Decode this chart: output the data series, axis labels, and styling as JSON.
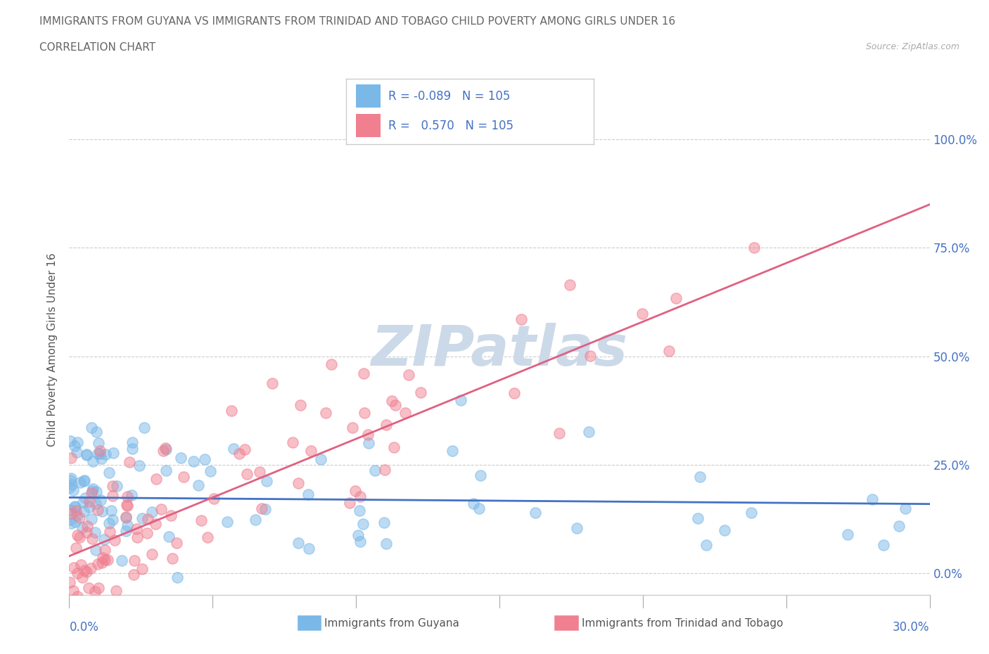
{
  "title": "IMMIGRANTS FROM GUYANA VS IMMIGRANTS FROM TRINIDAD AND TOBAGO CHILD POVERTY AMONG GIRLS UNDER 16",
  "subtitle": "CORRELATION CHART",
  "source": "Source: ZipAtlas.com",
  "ylabel": "Child Poverty Among Girls Under 16",
  "yticks_labels": [
    "0.0%",
    "25.0%",
    "50.0%",
    "75.0%",
    "100.0%"
  ],
  "ytick_vals": [
    0.0,
    0.25,
    0.5,
    0.75,
    1.0
  ],
  "xlim": [
    0.0,
    0.3
  ],
  "ylim": [
    -0.05,
    1.08
  ],
  "color_guyana": "#7ab8e8",
  "color_tt": "#f08090",
  "line_color_guyana": "#4472c4",
  "line_color_tt": "#e06080",
  "watermark": "ZIPatlas",
  "watermark_color": "#ccd9e8",
  "legend_R_color": "#4472c4",
  "background_color": "#ffffff",
  "grid_color": "#cccccc",
  "title_color": "#666666",
  "source_color": "#aaaaaa",
  "ylabel_color": "#555555",
  "right_tick_color": "#4472c4",
  "bottom_tick_color": "#4472c4",
  "N": 105,
  "R_guyana": -0.089,
  "R_tt": 0.57,
  "seed": 12
}
